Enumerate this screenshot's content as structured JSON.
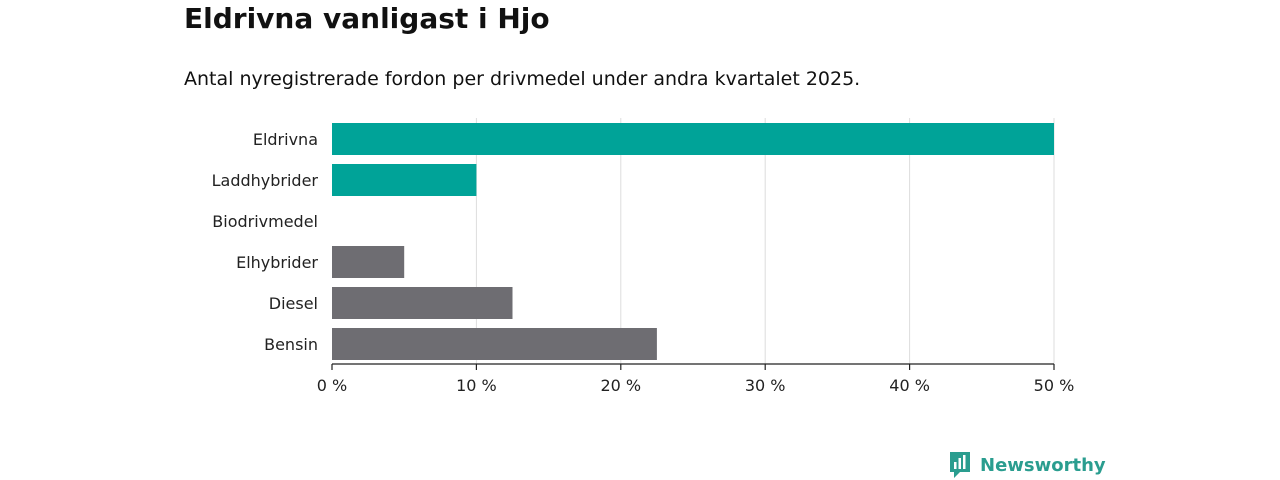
{
  "title": "Eldrivna vanligast i Hjo",
  "subtitle": "Antal nyregistrerade fordon per drivmedel under andra kvartalet 2025.",
  "brand": {
    "name": "Newsworthy",
    "icon": "newsworthy-logo-icon"
  },
  "colors": {
    "highlight": "#00a398",
    "neutral": "#6e6d72",
    "grid": "#dddddd",
    "axis": "#222222",
    "brand": "#2a9d8f"
  },
  "chart_data": {
    "type": "bar",
    "orientation": "horizontal",
    "categories": [
      "Eldrivna",
      "Laddhybrider",
      "Biodrivmedel",
      "Elhybrider",
      "Diesel",
      "Bensin"
    ],
    "values": [
      50,
      10,
      0,
      5,
      12.5,
      22.5
    ],
    "highlighted": [
      true,
      true,
      true,
      false,
      false,
      false
    ],
    "xlim": [
      0,
      50
    ],
    "xticks": [
      0,
      10,
      20,
      30,
      40,
      50
    ],
    "xtick_labels": [
      "0 %",
      "10 %",
      "20 %",
      "30 %",
      "40 %",
      "50 %"
    ],
    "unit": "%",
    "grid": true
  }
}
